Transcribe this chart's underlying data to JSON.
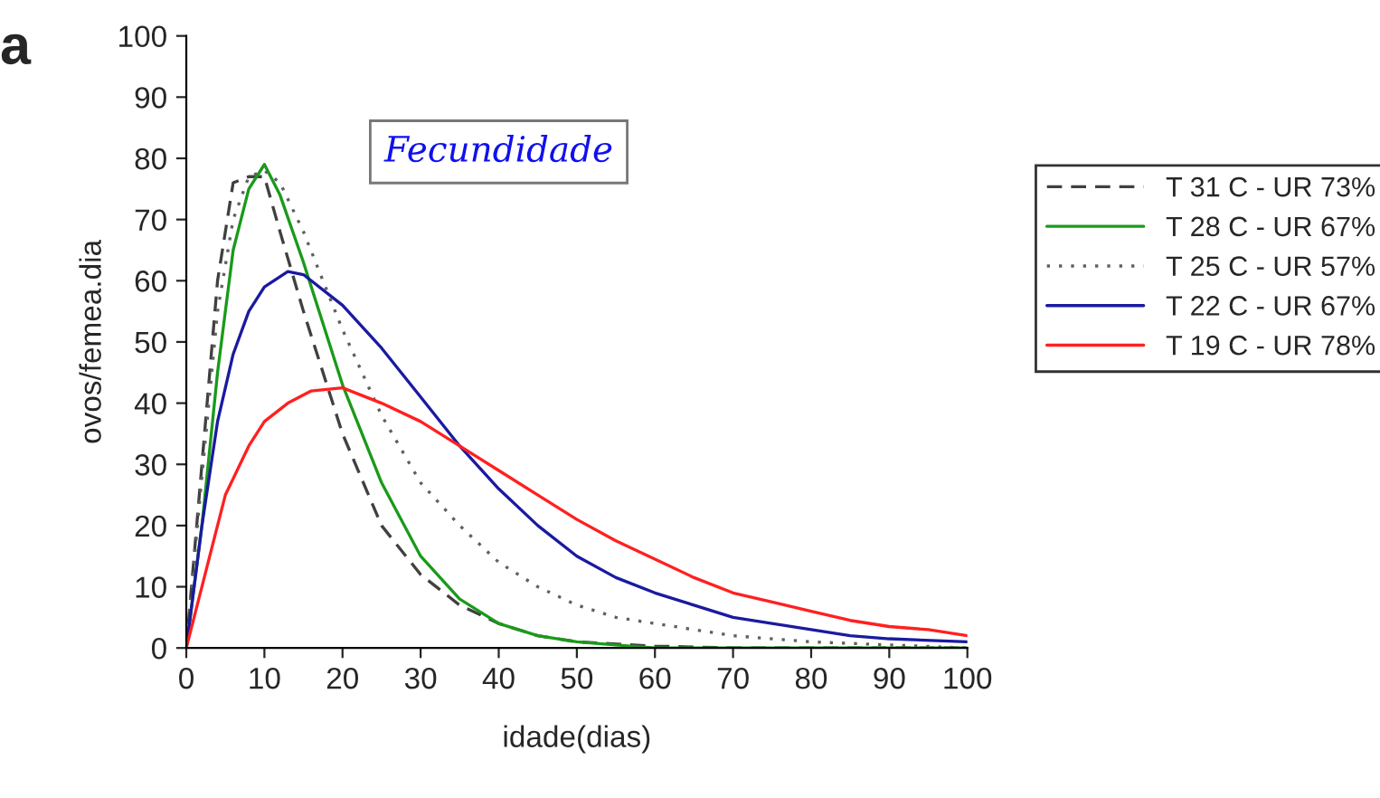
{
  "chart_data": {
    "type": "line",
    "title": "Fecundidade",
    "xlabel": "idade(dias)",
    "ylabel": "ovos/femea.dia",
    "annotations": [
      "a"
    ],
    "xlim": [
      0,
      100
    ],
    "ylim": [
      0,
      100
    ],
    "xticks": [
      0,
      10,
      20,
      30,
      40,
      50,
      60,
      70,
      80,
      90,
      100
    ],
    "yticks": [
      0,
      10,
      20,
      30,
      40,
      50,
      60,
      70,
      80,
      90,
      100
    ],
    "grid": false,
    "legend": "right",
    "marker": "none",
    "series": [
      {
        "name": "T 31 C - UR 73%",
        "color": "#404040",
        "line_style": "dashed",
        "x": [
          0,
          2,
          4,
          6,
          8,
          10,
          12,
          15,
          20,
          25,
          30,
          35,
          40,
          45,
          50,
          60,
          70,
          100
        ],
        "values": [
          0,
          30,
          60,
          76,
          77,
          77,
          68,
          55,
          35,
          20,
          12,
          7,
          4,
          2,
          1,
          0.3,
          0,
          0
        ]
      },
      {
        "name": "T 28 C - UR 67%",
        "color": "#1a9a1a",
        "line_style": "solid",
        "x": [
          0,
          2,
          4,
          6,
          8,
          10,
          12,
          15,
          20,
          25,
          30,
          35,
          40,
          45,
          50,
          55,
          60,
          100
        ],
        "values": [
          0,
          20,
          45,
          65,
          75,
          79,
          74,
          63,
          43,
          27,
          15,
          8,
          4,
          2,
          1,
          0.5,
          0,
          0
        ]
      },
      {
        "name": "T 25 C - UR 57%",
        "color": "#606060",
        "line_style": "dotted",
        "x": [
          0,
          2,
          4,
          6,
          8,
          10,
          12,
          15,
          20,
          25,
          30,
          35,
          40,
          45,
          50,
          55,
          60,
          70,
          80,
          90,
          100
        ],
        "values": [
          0,
          28,
          55,
          70,
          77,
          78,
          76,
          68,
          52,
          38,
          27,
          20,
          14,
          10,
          7,
          5,
          4,
          2,
          1,
          0.5,
          0
        ]
      },
      {
        "name": "T 22 C - UR 67%",
        "color": "#1a1aa0",
        "line_style": "solid",
        "x": [
          0,
          2,
          4,
          6,
          8,
          10,
          13,
          15,
          20,
          25,
          30,
          35,
          40,
          45,
          50,
          55,
          60,
          65,
          70,
          75,
          80,
          85,
          90,
          100
        ],
        "values": [
          0,
          20,
          37,
          48,
          55,
          59,
          61.5,
          61,
          56,
          49,
          41,
          33,
          26,
          20,
          15,
          11.5,
          9,
          7,
          5,
          4,
          3,
          2,
          1.5,
          1
        ]
      },
      {
        "name": "T 19 C - UR 78%",
        "color": "#ff2020",
        "line_style": "solid",
        "x": [
          0,
          3,
          5,
          8,
          10,
          13,
          16,
          20,
          25,
          30,
          35,
          40,
          45,
          50,
          55,
          60,
          65,
          70,
          75,
          80,
          85,
          90,
          95,
          100
        ],
        "values": [
          0,
          15,
          25,
          33,
          37,
          40,
          42,
          42.5,
          40,
          37,
          33,
          29,
          25,
          21,
          17.5,
          14.5,
          11.5,
          9,
          7.5,
          6,
          4.5,
          3.5,
          3,
          2
        ]
      }
    ]
  }
}
